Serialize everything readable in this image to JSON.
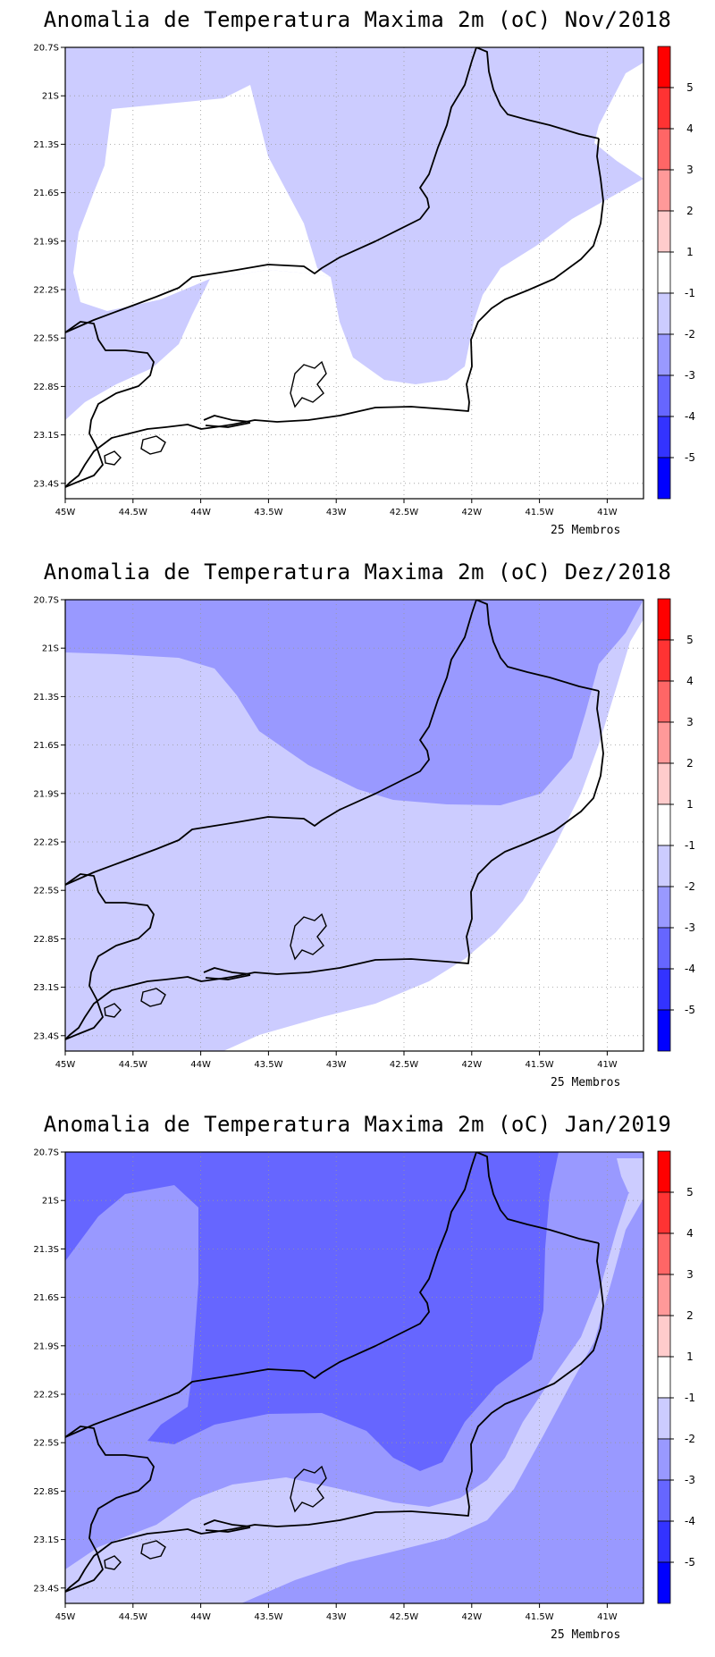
{
  "x_ticks": [
    "45W",
    "44.5W",
    "44W",
    "43.5W",
    "43W",
    "42.5W",
    "42W",
    "41.5W",
    "41W"
  ],
  "y_ticks": [
    "20.7S",
    "21S",
    "21.3S",
    "21.6S",
    "21.9S",
    "22.2S",
    "22.5S",
    "22.8S",
    "23.1S",
    "23.4S"
  ],
  "colorbar": {
    "labels": [
      "5",
      "4",
      "3",
      "2",
      "1",
      "-1",
      "-2",
      "-3",
      "-4",
      "-5"
    ],
    "colors": [
      "#ff0000",
      "#ff3333",
      "#ff6666",
      "#ff9999",
      "#ffcccc",
      "#ffffff",
      "#ccccff",
      "#9999ff",
      "#6666ff",
      "#3333ff",
      "#0000ff"
    ]
  },
  "panels": [
    {
      "title": "Anomalia de Temperatura Maxima 2m (oC) Nov/2018",
      "note": "25 Membros"
    },
    {
      "title": "Anomalia de Temperatura Maxima 2m (oC) Dez/2018",
      "note": "25 Membros"
    },
    {
      "title": "Anomalia de Temperatura Maxima 2m (oC) Jan/2019",
      "note": "25 Membros"
    }
  ]
}
